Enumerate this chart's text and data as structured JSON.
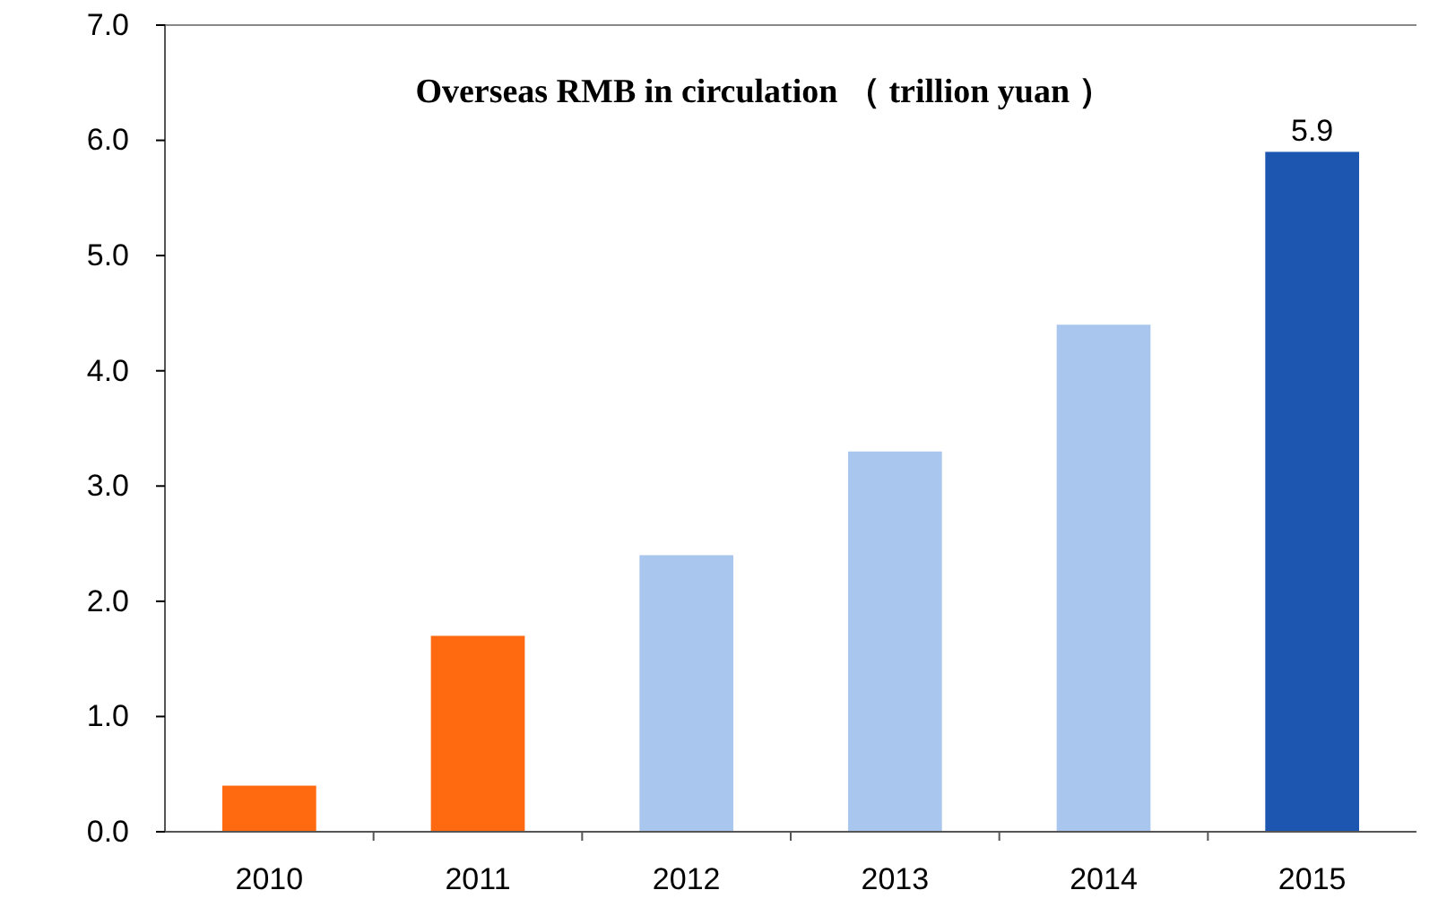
{
  "chart_data": {
    "type": "bar",
    "title": "Overseas RMB  in circulation （ trillion yuan ）",
    "categories": [
      "2010",
      "2011",
      "2012",
      "2013",
      "2014",
      "2015"
    ],
    "values": [
      0.4,
      1.7,
      2.4,
      3.3,
      4.4,
      5.9
    ],
    "colors": [
      "#ff6a10",
      "#ff6a10",
      "#a9c6ee",
      "#a9c6ee",
      "#a9c6ee",
      "#1d56b0"
    ],
    "value_labels": [
      null,
      null,
      null,
      null,
      null,
      "5.9"
    ],
    "ylim": [
      0,
      7
    ],
    "yticks": [
      {
        "value": 0,
        "label": "0.0"
      },
      {
        "value": 1,
        "label": "1.0"
      },
      {
        "value": 2,
        "label": "2.0"
      },
      {
        "value": 3,
        "label": "3.0"
      },
      {
        "value": 4,
        "label": "4.0"
      },
      {
        "value": 5,
        "label": "5.0"
      },
      {
        "value": 6,
        "label": "6.0"
      },
      {
        "value": 7,
        "label": "7.0"
      }
    ],
    "grid": false
  }
}
